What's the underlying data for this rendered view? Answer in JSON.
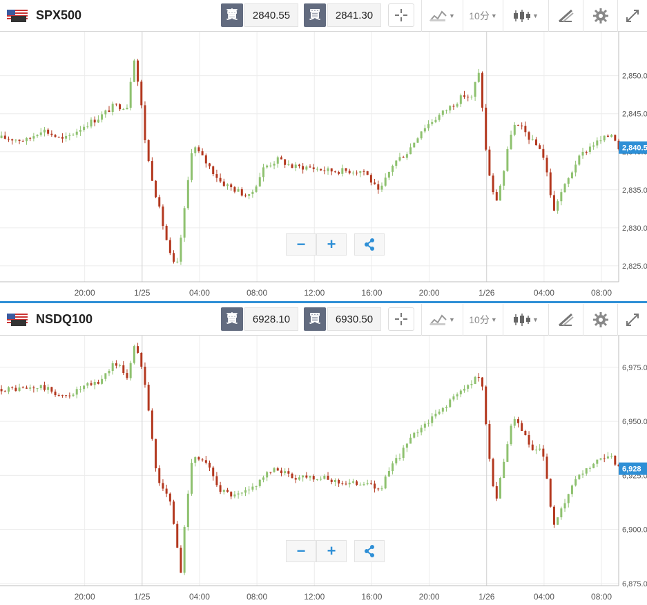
{
  "colors": {
    "up": "#8ec16f",
    "down": "#b3381f",
    "accent": "#2e8fd6",
    "grid": "#ececec",
    "quote_btn": "#626b7f"
  },
  "panels": [
    {
      "symbol": "SPX500",
      "flag_icon": "us-flag-icon",
      "sell_label": "賣",
      "sell_price": "2840.55",
      "buy_label": "買",
      "buy_price": "2841.30",
      "timeframe": "10分",
      "toolbar_icons": [
        "crosshair-icon",
        "chart-type-icon",
        "timeframe-dropdown",
        "candlestick-icon",
        "draw-icon",
        "gear-icon",
        "expand-icon"
      ],
      "zoom_out": "−",
      "zoom_in": "+",
      "share_icon": "share-icon",
      "last_price_label": "2,840.5"
    },
    {
      "symbol": "NSDQ100",
      "flag_icon": "us-flag-icon",
      "sell_label": "賣",
      "sell_price": "6928.10",
      "buy_label": "買",
      "buy_price": "6930.50",
      "timeframe": "10分",
      "toolbar_icons": [
        "crosshair-icon",
        "chart-type-icon",
        "timeframe-dropdown",
        "candlestick-icon",
        "draw-icon",
        "gear-icon",
        "expand-icon"
      ],
      "zoom_out": "−",
      "zoom_in": "+",
      "share_icon": "share-icon",
      "last_price_label": "6,928"
    }
  ],
  "chart_data": [
    {
      "type": "candlestick",
      "title": "SPX500",
      "x_ticks": [
        "20:00",
        "1/25",
        "04:00",
        "08:00",
        "12:00",
        "16:00",
        "20:00",
        "1/26",
        "04:00",
        "08:00"
      ],
      "x_tick_hours": [
        -28,
        -24,
        -20,
        -16,
        -12,
        -8,
        -4,
        0,
        4,
        8
      ],
      "x_range_hours": [
        -33.9,
        9.2
      ],
      "y_ticks": [
        "2,825.0",
        "2,830.0",
        "2,835.0",
        "2,840.0",
        "2,845.0",
        "2,850.0"
      ],
      "y_tick_values": [
        2825,
        2830,
        2835,
        2840,
        2845,
        2850
      ],
      "ylim": [
        2822.9,
        2855.6
      ],
      "last_price": 2840.55,
      "series": [
        {
          "t": -33.5,
          "c": 2841.8
        },
        {
          "t": -32.0,
          "c": 2841.5
        },
        {
          "t": -31.0,
          "c": 2843.0
        },
        {
          "t": -30.0,
          "c": 2842.0
        },
        {
          "t": -29.5,
          "c": 2841.5
        },
        {
          "t": -28.0,
          "c": 2843.5
        },
        {
          "t": -27.0,
          "c": 2844.5
        },
        {
          "t": -26.0,
          "c": 2846.0
        },
        {
          "t": -25.0,
          "c": 2846.0
        },
        {
          "t": -24.6,
          "c": 2853.0
        },
        {
          "t": -24.1,
          "c": 2846.8
        },
        {
          "t": -23.7,
          "c": 2840.0
        },
        {
          "t": -23.0,
          "c": 2834.0
        },
        {
          "t": -22.0,
          "c": 2826.0
        },
        {
          "t": -21.6,
          "c": 2824.5
        },
        {
          "t": -21.0,
          "c": 2833.0
        },
        {
          "t": -20.5,
          "c": 2841.0
        },
        {
          "t": -19.5,
          "c": 2838.5
        },
        {
          "t": -18.5,
          "c": 2836.0
        },
        {
          "t": -17.5,
          "c": 2835.0
        },
        {
          "t": -16.5,
          "c": 2834.0
        },
        {
          "t": -15.5,
          "c": 2838.0
        },
        {
          "t": -14.5,
          "c": 2839.0
        },
        {
          "t": -13.5,
          "c": 2838.0
        },
        {
          "t": -12.5,
          "c": 2838.0
        },
        {
          "t": -11.0,
          "c": 2837.5
        },
        {
          "t": -9.5,
          "c": 2837.5
        },
        {
          "t": -8.5,
          "c": 2837.5
        },
        {
          "t": -7.5,
          "c": 2834.5
        },
        {
          "t": -6.5,
          "c": 2838.5
        },
        {
          "t": -5.5,
          "c": 2840.0
        },
        {
          "t": -4.5,
          "c": 2843.0
        },
        {
          "t": -3.5,
          "c": 2844.5
        },
        {
          "t": -2.5,
          "c": 2846.0
        },
        {
          "t": -1.5,
          "c": 2847.5
        },
        {
          "t": -1.0,
          "c": 2847.0
        },
        {
          "t": -0.6,
          "c": 2851.0
        },
        {
          "t": -0.3,
          "c": 2846.0
        },
        {
          "t": 0.0,
          "c": 2839.0
        },
        {
          "t": 0.6,
          "c": 2833.0
        },
        {
          "t": 1.2,
          "c": 2837.5
        },
        {
          "t": 1.8,
          "c": 2843.5
        },
        {
          "t": 2.5,
          "c": 2843.0
        },
        {
          "t": 3.3,
          "c": 2841.0
        },
        {
          "t": 3.8,
          "c": 2840.5
        },
        {
          "t": 4.4,
          "c": 2835.5
        },
        {
          "t": 4.6,
          "c": 2831.5
        },
        {
          "t": 5.0,
          "c": 2834.0
        },
        {
          "t": 5.6,
          "c": 2836.0
        },
        {
          "t": 6.2,
          "c": 2838.5
        },
        {
          "t": 6.8,
          "c": 2840.0
        },
        {
          "t": 7.4,
          "c": 2841.0
        },
        {
          "t": 8.0,
          "c": 2841.5
        },
        {
          "t": 8.8,
          "c": 2842.5
        },
        {
          "t": 9.2,
          "c": 2840.55
        }
      ]
    },
    {
      "type": "candlestick",
      "title": "NSDQ100",
      "x_ticks": [
        "20:00",
        "1/25",
        "04:00",
        "08:00",
        "12:00",
        "16:00",
        "20:00",
        "1/26",
        "04:00",
        "08:00"
      ],
      "x_tick_hours": [
        -28,
        -24,
        -20,
        -16,
        -12,
        -8,
        -4,
        0,
        4,
        8
      ],
      "x_range_hours": [
        -33.9,
        9.2
      ],
      "y_ticks": [
        "6,875.0",
        "6,900.0",
        "6,925.0",
        "6,950.0",
        "6,975.0"
      ],
      "y_tick_values": [
        6875,
        6900,
        6925,
        6950,
        6975
      ],
      "ylim": [
        6874,
        6989
      ],
      "last_price": 6928.1,
      "series": [
        {
          "t": -33.5,
          "c": 6965.0
        },
        {
          "t": -32.0,
          "c": 6965.0
        },
        {
          "t": -31.0,
          "c": 6966.0
        },
        {
          "t": -30.0,
          "c": 6963.0
        },
        {
          "t": -29.5,
          "c": 6961.0
        },
        {
          "t": -28.0,
          "c": 6966.0
        },
        {
          "t": -27.0,
          "c": 6968.0
        },
        {
          "t": -26.0,
          "c": 6977.0
        },
        {
          "t": -25.5,
          "c": 6975.0
        },
        {
          "t": -25.0,
          "c": 6970.0
        },
        {
          "t": -24.6,
          "c": 6985.0
        },
        {
          "t": -24.1,
          "c": 6978.0
        },
        {
          "t": -23.7,
          "c": 6965.0
        },
        {
          "t": -23.0,
          "c": 6925.0
        },
        {
          "t": -22.0,
          "c": 6912.0
        },
        {
          "t": -21.3,
          "c": 6880.0
        },
        {
          "t": -21.0,
          "c": 6905.0
        },
        {
          "t": -20.5,
          "c": 6935.0
        },
        {
          "t": -19.5,
          "c": 6930.0
        },
        {
          "t": -18.5,
          "c": 6918.0
        },
        {
          "t": -17.5,
          "c": 6915.0
        },
        {
          "t": -16.5,
          "c": 6918.0
        },
        {
          "t": -15.5,
          "c": 6925.0
        },
        {
          "t": -14.5,
          "c": 6928.0
        },
        {
          "t": -13.5,
          "c": 6924.0
        },
        {
          "t": -12.5,
          "c": 6925.0
        },
        {
          "t": -11.0,
          "c": 6923.0
        },
        {
          "t": -9.5,
          "c": 6921.0
        },
        {
          "t": -8.5,
          "c": 6922.0
        },
        {
          "t": -7.5,
          "c": 6918.0
        },
        {
          "t": -6.5,
          "c": 6930.0
        },
        {
          "t": -5.5,
          "c": 6940.0
        },
        {
          "t": -4.5,
          "c": 6948.0
        },
        {
          "t": -3.5,
          "c": 6953.0
        },
        {
          "t": -2.5,
          "c": 6960.0
        },
        {
          "t": -1.5,
          "c": 6965.0
        },
        {
          "t": -0.6,
          "c": 6972.0
        },
        {
          "t": -0.3,
          "c": 6965.0
        },
        {
          "t": 0.0,
          "c": 6945.0
        },
        {
          "t": 0.6,
          "c": 6912.0
        },
        {
          "t": 1.2,
          "c": 6930.0
        },
        {
          "t": 1.8,
          "c": 6952.0
        },
        {
          "t": 2.5,
          "c": 6945.0
        },
        {
          "t": 3.3,
          "c": 6935.0
        },
        {
          "t": 3.8,
          "c": 6938.0
        },
        {
          "t": 4.4,
          "c": 6915.0
        },
        {
          "t": 4.6,
          "c": 6900.0
        },
        {
          "t": 5.0,
          "c": 6905.0
        },
        {
          "t": 5.6,
          "c": 6915.0
        },
        {
          "t": 6.2,
          "c": 6922.0
        },
        {
          "t": 6.8,
          "c": 6927.0
        },
        {
          "t": 7.4,
          "c": 6930.0
        },
        {
          "t": 8.0,
          "c": 6932.0
        },
        {
          "t": 8.8,
          "c": 6933.0
        },
        {
          "t": 9.2,
          "c": 6928.1
        }
      ]
    }
  ]
}
